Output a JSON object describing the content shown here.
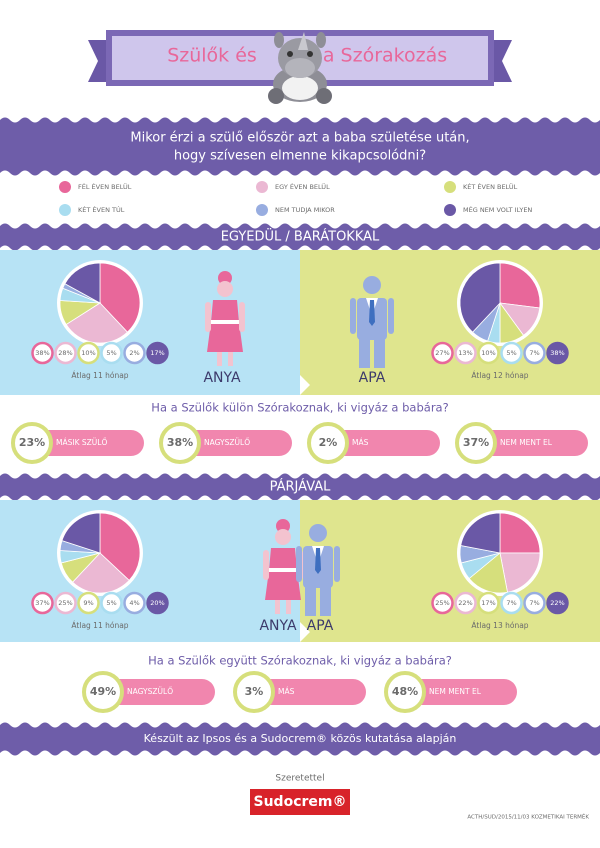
{
  "header": {
    "title_left": "Szülők és",
    "title_right": "a Szórakozás"
  },
  "question": [
    "Mikor érzi a szülő először azt a baba születése után,",
    "hogy szívesen elmenne kikapcsolódni?"
  ],
  "legend": [
    {
      "label": "FÉL ÉVEN BELÜL",
      "color": "#e8679a"
    },
    {
      "label": "EGY ÉVEN BELÜL",
      "color": "#ebb8d3"
    },
    {
      "label": "KÉT ÉVEN BELÜL",
      "color": "#d6df7c"
    },
    {
      "label": "KÉT ÉVEN TÚL",
      "color": "#a9ddf0"
    },
    {
      "label": "NEM TUDJA MIKOR",
      "color": "#98ade0"
    },
    {
      "label": "MÉG NEM VOLT ILYEN",
      "color": "#6a58a6"
    }
  ],
  "sections": [
    {
      "title": "EGYEDÜL / BARÁTOKKAL",
      "panels": [
        {
          "values": [
            38,
            28,
            10,
            5,
            2,
            17
          ],
          "value_labels": [
            "38%",
            "28%",
            "10%",
            "5%",
            "2%",
            "17%"
          ],
          "average": "Átlag 11 hónap",
          "person": "ANYA"
        },
        {
          "values": [
            27,
            13,
            10,
            5,
            7,
            38
          ],
          "value_labels": [
            "27%",
            "13%",
            "10%",
            "5%",
            "7%",
            "38%"
          ],
          "average": "Átlag 12 hónap",
          "person": "APA"
        }
      ],
      "question": "Ha a Szülők külön Szórakoznak, ki vigyáz a babára?",
      "answers": [
        {
          "share": "23%",
          "label": "MÁSIK SZÜLŐ"
        },
        {
          "share": "38%",
          "label": "NAGYSZÜLŐ"
        },
        {
          "share": "2%",
          "label": "MÁS"
        },
        {
          "share": "37%",
          "label": "NEM MENT EL"
        }
      ]
    },
    {
      "title": "PÁRJÁVAL",
      "panels": [
        {
          "values": [
            37,
            25,
            9,
            5,
            4,
            20
          ],
          "value_labels": [
            "37%",
            "25%",
            "9%",
            "5%",
            "4%",
            "20%"
          ],
          "average": "Átlag 11 hónap",
          "person": "ANYA"
        },
        {
          "values": [
            25,
            22,
            17,
            7,
            7,
            22
          ],
          "value_labels": [
            "25%",
            "22%",
            "17%",
            "7%",
            "7%",
            "22%"
          ],
          "average": "Átlag 13 hónap",
          "person": "APA"
        }
      ],
      "question": "Ha a Szülők együtt Szórakoznak, ki vigyáz a babára?",
      "answers": [
        {
          "share": "49%",
          "label": "NAGYSZÜLŐ"
        },
        {
          "share": "3%",
          "label": "MÁS"
        },
        {
          "share": "48%",
          "label": "NEM MENT EL"
        }
      ]
    }
  ],
  "footer": {
    "note": "Készült az Ipsos és a Sudocrem® közös kutatása alapján",
    "signoff": "Szeretettel",
    "brand": "Sudocrem®",
    "code": "ACTH/SUD/2015/11/03 KOZMETIKAI TERMÉK"
  }
}
